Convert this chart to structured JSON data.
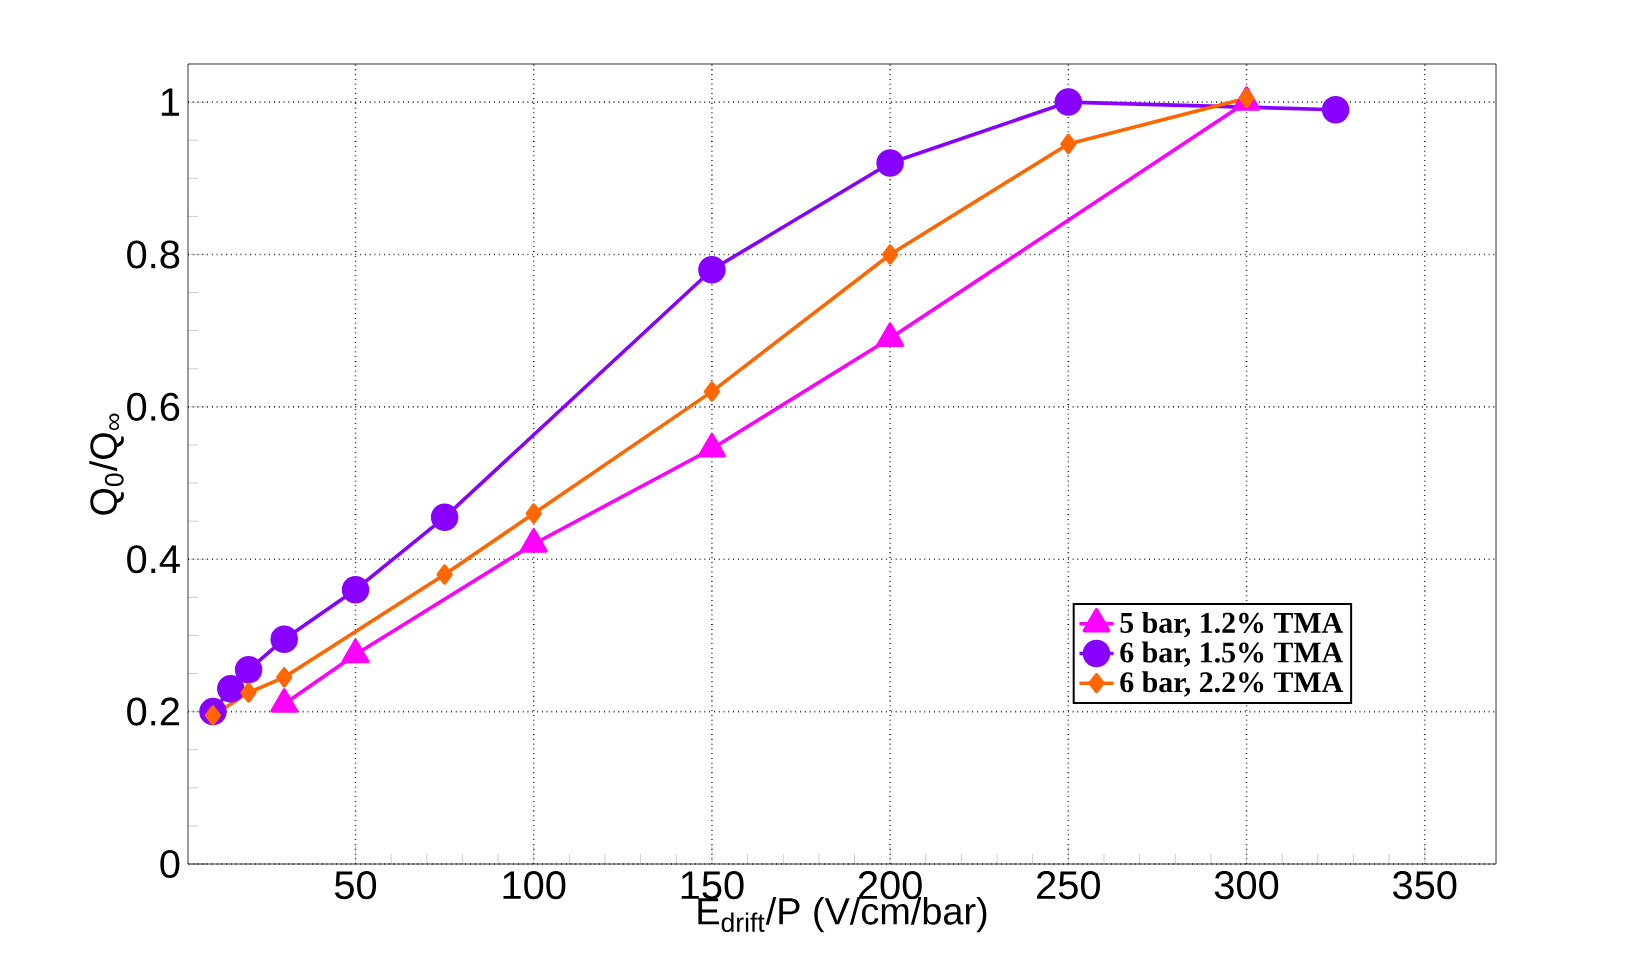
{
  "chart_data": {
    "type": "line",
    "xlabel": "E$_{drift}$/P (V/cm/bar)",
    "ylabel": "Q$_{0}$/Q$_{∞}$",
    "xlim": [
      3,
      370
    ],
    "ylim": [
      0,
      1.05
    ],
    "xticks": [
      50,
      100,
      150,
      200,
      250,
      300,
      350
    ],
    "yticks": [
      0,
      0.2,
      0.4,
      0.6,
      0.8,
      1
    ],
    "grid": true,
    "legend": "right",
    "series": [
      {
        "name": "5 bar, 1.2% TMA",
        "color": "#ff00ff",
        "marker": "triangle",
        "x": [
          30,
          50,
          100,
          150,
          200,
          300
        ],
        "values": [
          0.21,
          0.275,
          0.42,
          0.545,
          0.69,
          1.0
        ]
      },
      {
        "name": "6 bar, 1.5% TMA",
        "color": "#8800ff",
        "marker": "circle",
        "x": [
          10,
          15,
          20,
          30,
          50,
          75,
          150,
          200,
          250,
          325
        ],
        "values": [
          0.2,
          0.23,
          0.255,
          0.295,
          0.36,
          0.455,
          0.78,
          0.92,
          1.0,
          0.99
        ]
      },
      {
        "name": "6 bar, 2.2% TMA",
        "color": "#ff6600",
        "marker": "diamond",
        "x": [
          10,
          20,
          30,
          75,
          100,
          150,
          200,
          250,
          300
        ],
        "values": [
          0.195,
          0.225,
          0.245,
          0.38,
          0.46,
          0.62,
          0.8,
          0.945,
          1.005
        ]
      }
    ]
  }
}
